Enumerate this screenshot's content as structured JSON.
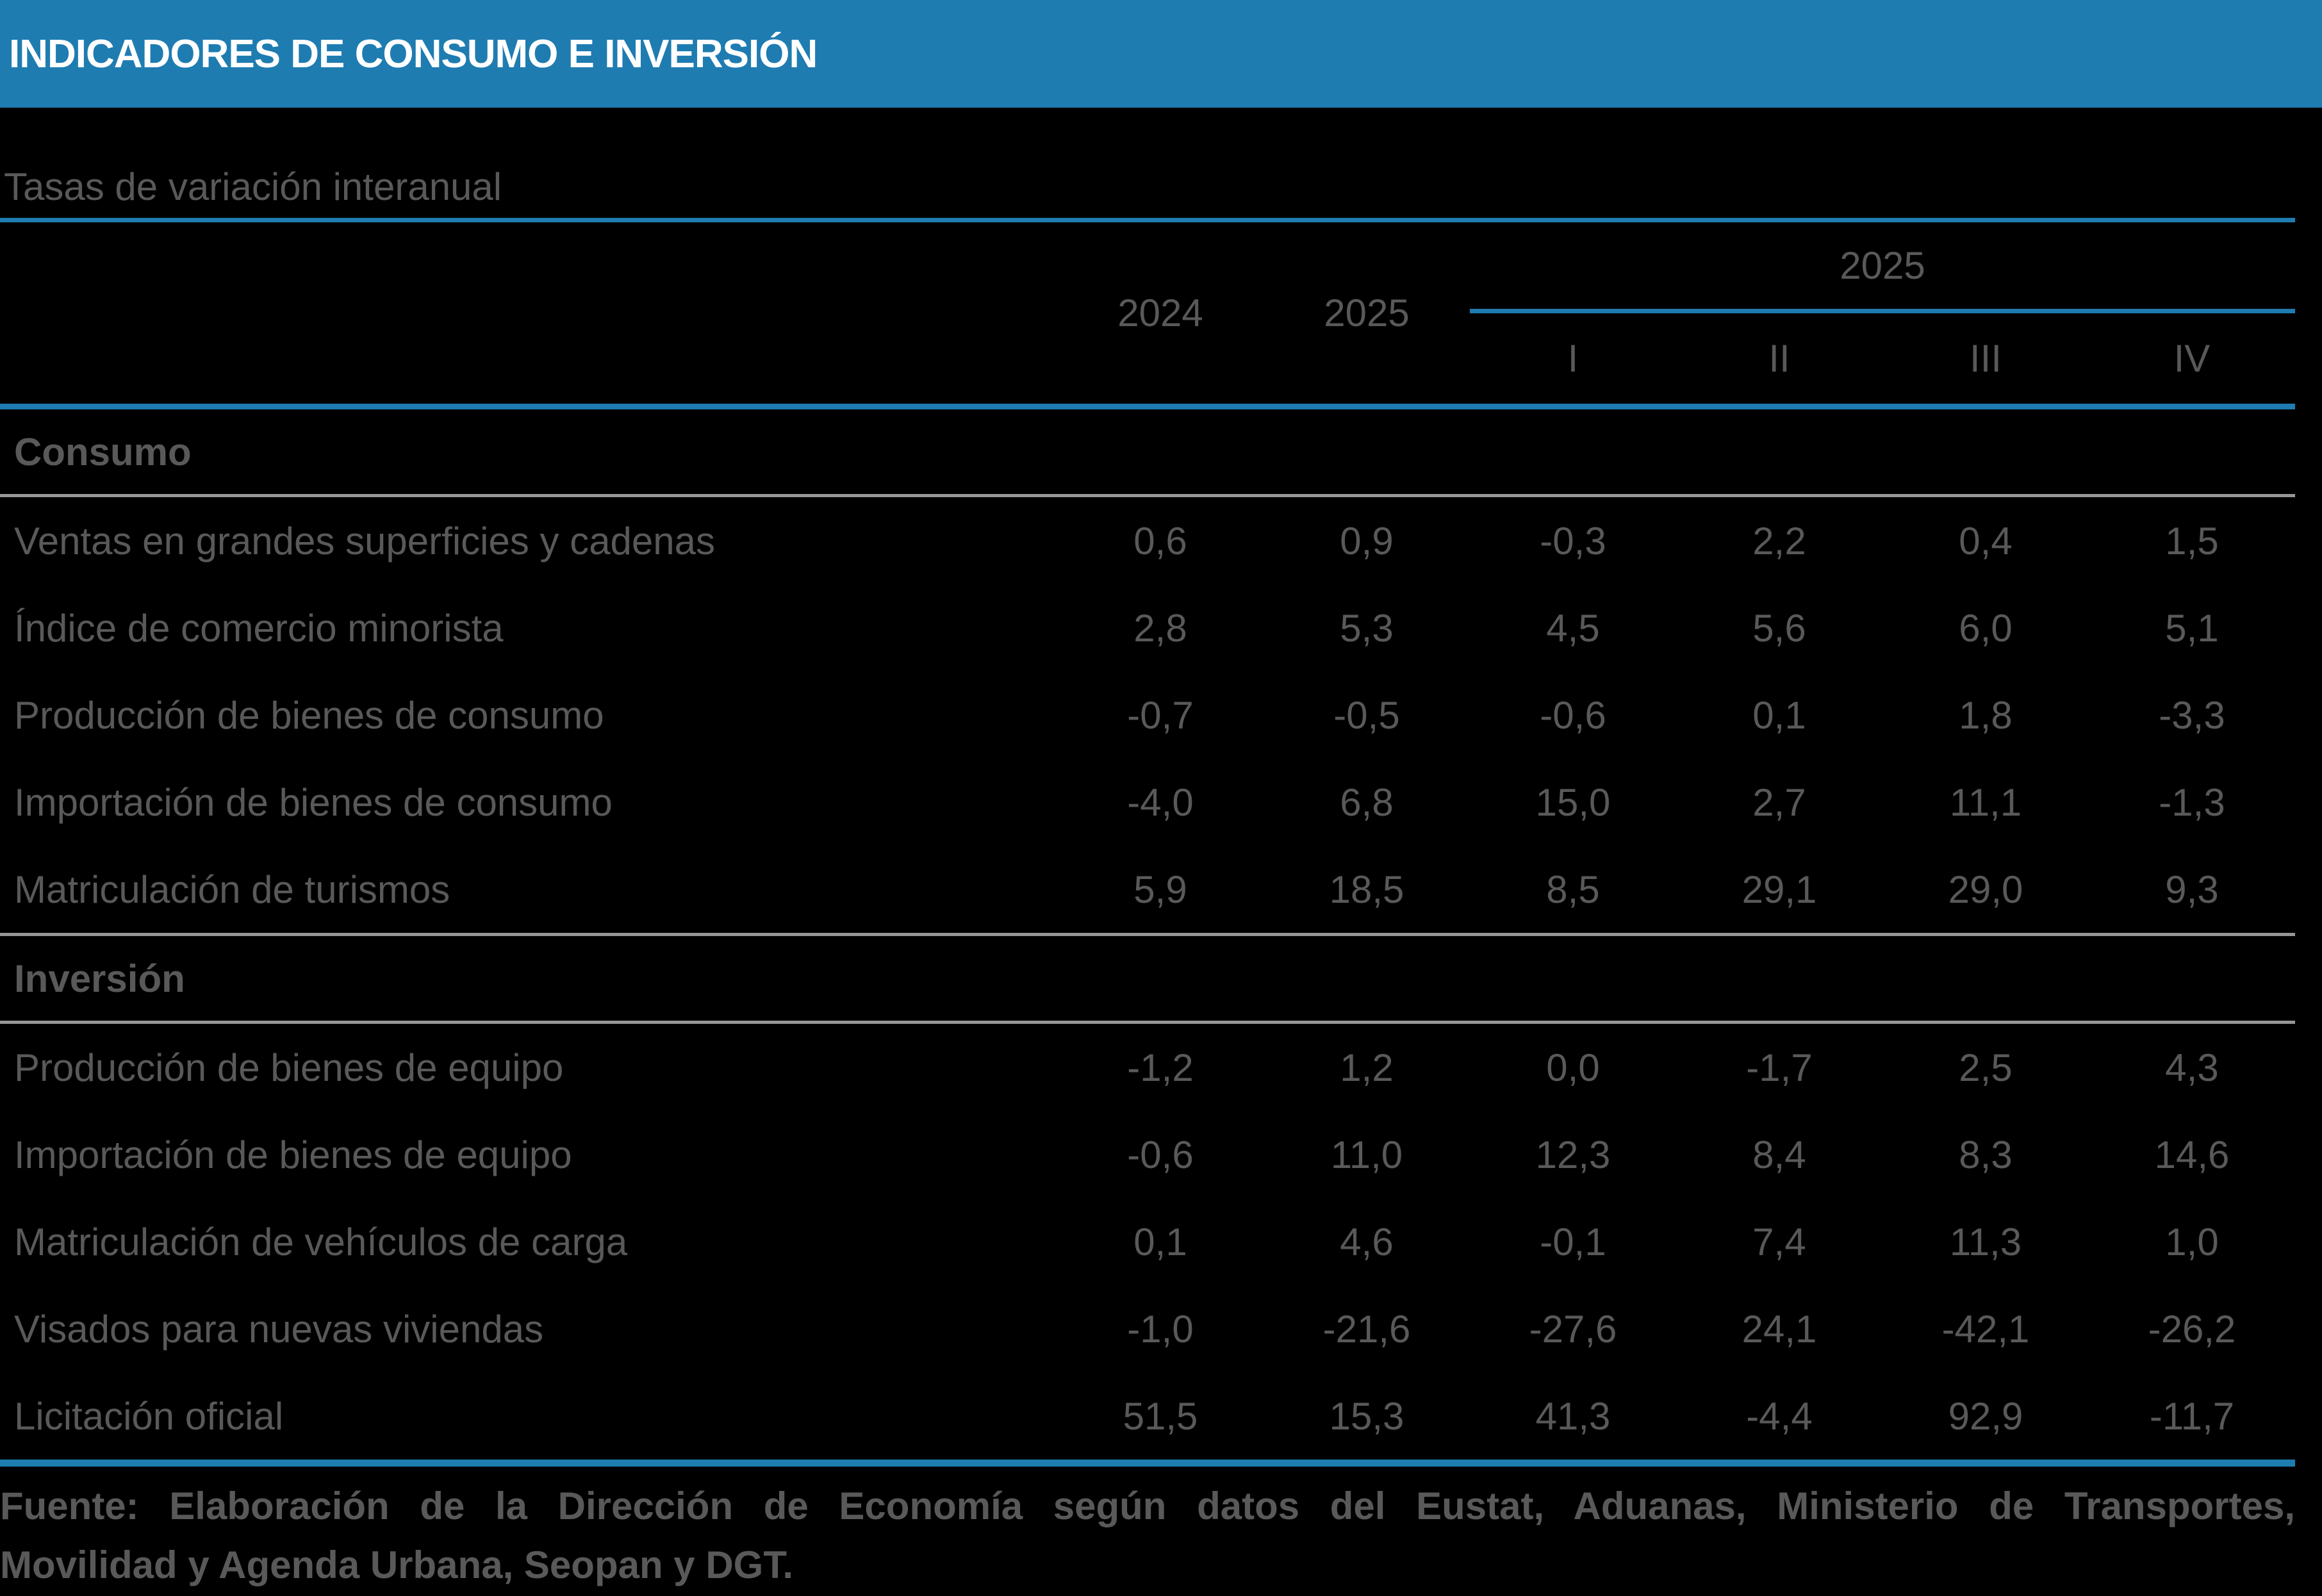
{
  "header": {
    "title": "INDICADORES DE CONSUMO E INVERSIÓN"
  },
  "subtitle": "Tasas de variación interanual",
  "table": {
    "year_columns": [
      "2024",
      "2025"
    ],
    "quarter_group_label": "2025",
    "quarter_columns": [
      "I",
      "II",
      "III",
      "IV"
    ],
    "sections": [
      {
        "label": "Consumo",
        "rows": [
          {
            "label": "Ventas en grandes superficies y cadenas",
            "values": [
              "0,6",
              "0,9",
              "-0,3",
              "2,2",
              "0,4",
              "1,5"
            ]
          },
          {
            "label": "Índice de comercio minorista",
            "values": [
              "2,8",
              "5,3",
              "4,5",
              "5,6",
              "6,0",
              "5,1"
            ]
          },
          {
            "label": "Producción de bienes de consumo",
            "values": [
              "-0,7",
              "-0,5",
              "-0,6",
              "0,1",
              "1,8",
              "-3,3"
            ]
          },
          {
            "label": "Importación de bienes de consumo",
            "values": [
              "-4,0",
              "6,8",
              "15,0",
              "2,7",
              "11,1",
              "-1,3"
            ]
          },
          {
            "label": "Matriculación de turismos",
            "values": [
              "5,9",
              "18,5",
              "8,5",
              "29,1",
              "29,0",
              "9,3"
            ]
          }
        ]
      },
      {
        "label": "Inversión",
        "rows": [
          {
            "label": "Producción de bienes de equipo",
            "values": [
              "-1,2",
              "1,2",
              "0,0",
              "-1,7",
              "2,5",
              "4,3"
            ]
          },
          {
            "label": "Importación de bienes de equipo",
            "values": [
              "-0,6",
              "11,0",
              "12,3",
              "8,4",
              "8,3",
              "14,6"
            ]
          },
          {
            "label": "Matriculación de vehículos de carga",
            "values": [
              "0,1",
              "4,6",
              "-0,1",
              "7,4",
              "11,3",
              "1,0"
            ]
          },
          {
            "label": "Visados para nuevas viviendas",
            "values": [
              "-1,0",
              "-21,6",
              "-27,6",
              "24,1",
              "-42,1",
              "-26,2"
            ]
          },
          {
            "label": "Licitación oficial",
            "values": [
              "51,5",
              "15,3",
              "41,3",
              "-4,4",
              "92,9",
              "-11,7"
            ]
          }
        ]
      }
    ]
  },
  "footer": {
    "line1": "Fuente: Elaboración de la Dirección de Economía según datos del Eustat, Aduanas, Ministerio de Transportes,",
    "line2": "Movilidad y Agenda Urbana, Seopan y DGT."
  },
  "colors": {
    "accent_blue": "#1E7CB1",
    "text_gray": "#595959",
    "line_gray": "#969696",
    "title_white": "#FFFFFF",
    "background": "#000000"
  }
}
